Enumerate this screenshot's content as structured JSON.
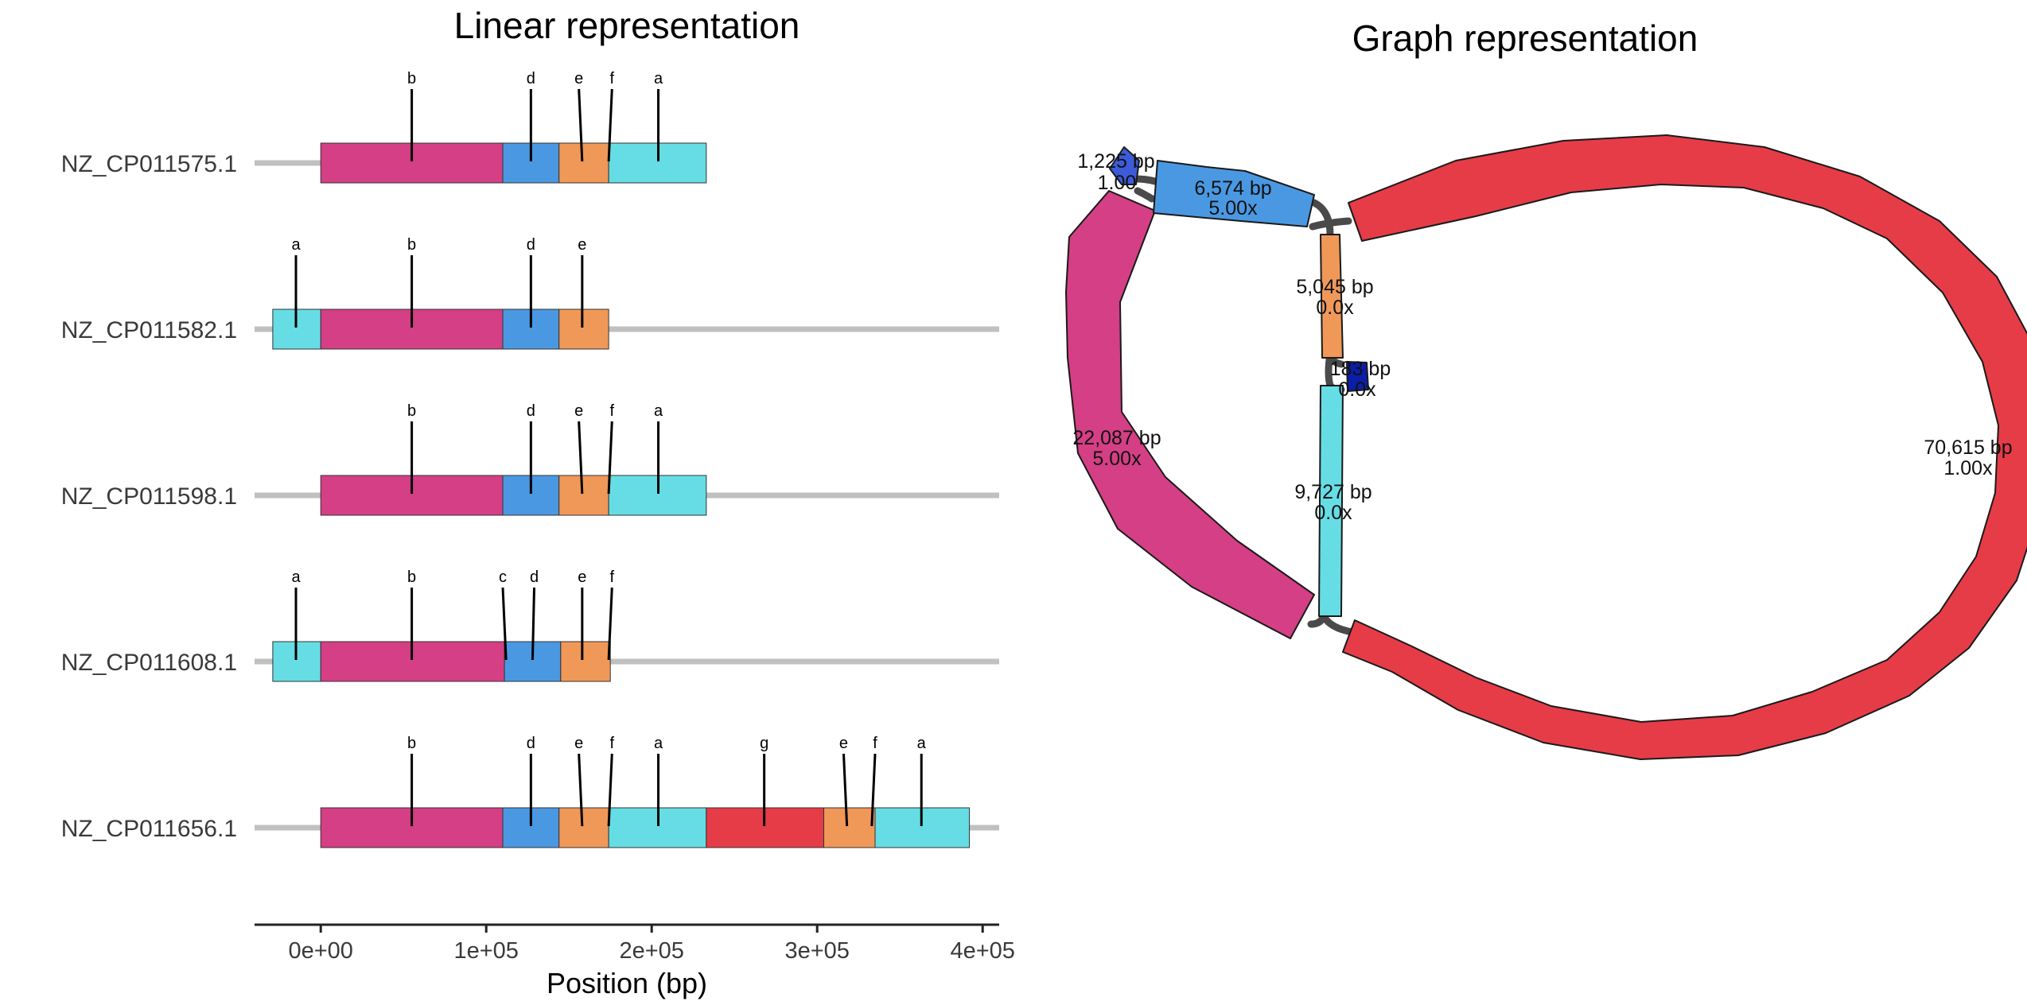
{
  "chart_data": [
    {
      "type": "linear-genome-map",
      "title": "Linear representation",
      "xlabel": "Position (bp)",
      "ylabel": "",
      "xlim": [
        -40000,
        410000
      ],
      "x_ticks": [
        0,
        100000,
        200000,
        300000,
        400000
      ],
      "x_tick_labels": [
        "0e+00",
        "1e+05",
        "2e+05",
        "3e+05",
        "4e+05"
      ],
      "segment_colors": {
        "magenta": "#d43f85",
        "blue": "#4a98e2",
        "orange": "#f09858",
        "cyan": "#66dde4",
        "red": "#e63c48"
      },
      "rows": [
        {
          "name": "NZ_CP011575.1",
          "line": [
            -40000,
            210000
          ],
          "segments": [
            {
              "start": 0,
              "end": 110000,
              "color": "magenta"
            },
            {
              "start": 110000,
              "end": 144000,
              "color": "blue"
            },
            {
              "start": 144000,
              "end": 174000,
              "color": "orange"
            },
            {
              "start": 174000,
              "end": 233000,
              "color": "cyan"
            }
          ],
          "genes": [
            {
              "label": "b",
              "pos": 55000
            },
            {
              "label": "d",
              "pos": 127000
            },
            {
              "label": "e",
              "pos": 158000,
              "top_pos": 156000
            },
            {
              "label": "f",
              "pos": 174000,
              "top_pos": 176000
            },
            {
              "label": "a",
              "pos": 204000
            }
          ]
        },
        {
          "name": "NZ_CP011582.1",
          "line": [
            -40000,
            410000
          ],
          "segments": [
            {
              "start": -29000,
              "end": 0,
              "color": "cyan"
            },
            {
              "start": 0,
              "end": 110000,
              "color": "magenta"
            },
            {
              "start": 110000,
              "end": 144000,
              "color": "blue"
            },
            {
              "start": 144000,
              "end": 174000,
              "color": "orange"
            }
          ],
          "genes": [
            {
              "label": "a",
              "pos": -15000
            },
            {
              "label": "b",
              "pos": 55000
            },
            {
              "label": "d",
              "pos": 127000
            },
            {
              "label": "e",
              "pos": 158000
            }
          ]
        },
        {
          "name": "NZ_CP011598.1",
          "line": [
            -40000,
            410000
          ],
          "segments": [
            {
              "start": 0,
              "end": 110000,
              "color": "magenta"
            },
            {
              "start": 110000,
              "end": 144000,
              "color": "blue"
            },
            {
              "start": 144000,
              "end": 174000,
              "color": "orange"
            },
            {
              "start": 174000,
              "end": 233000,
              "color": "cyan"
            }
          ],
          "genes": [
            {
              "label": "b",
              "pos": 55000
            },
            {
              "label": "d",
              "pos": 127000
            },
            {
              "label": "e",
              "pos": 158000,
              "top_pos": 156000
            },
            {
              "label": "f",
              "pos": 174000,
              "top_pos": 176000
            },
            {
              "label": "a",
              "pos": 204000
            }
          ]
        },
        {
          "name": "NZ_CP011608.1",
          "line": [
            -40000,
            410000
          ],
          "segments": [
            {
              "start": -29000,
              "end": 0,
              "color": "cyan"
            },
            {
              "start": 0,
              "end": 111000,
              "color": "magenta"
            },
            {
              "start": 111000,
              "end": 145000,
              "color": "blue"
            },
            {
              "start": 145000,
              "end": 175000,
              "color": "orange"
            }
          ],
          "genes": [
            {
              "label": "a",
              "pos": -15000
            },
            {
              "label": "b",
              "pos": 55000
            },
            {
              "label": "c",
              "pos": 112000,
              "top_pos": 110000
            },
            {
              "label": "d",
              "pos": 128000,
              "top_pos": 129000
            },
            {
              "label": "e",
              "pos": 158000
            },
            {
              "label": "f",
              "pos": 174000,
              "top_pos": 176000
            }
          ]
        },
        {
          "name": "NZ_CP011656.1",
          "line": [
            -40000,
            410000
          ],
          "segments": [
            {
              "start": 0,
              "end": 110000,
              "color": "magenta"
            },
            {
              "start": 110000,
              "end": 144000,
              "color": "blue"
            },
            {
              "start": 144000,
              "end": 174000,
              "color": "orange"
            },
            {
              "start": 174000,
              "end": 233000,
              "color": "cyan"
            },
            {
              "start": 233000,
              "end": 304000,
              "color": "red"
            },
            {
              "start": 304000,
              "end": 335000,
              "color": "orange"
            },
            {
              "start": 335000,
              "end": 392000,
              "color": "cyan"
            }
          ],
          "genes": [
            {
              "label": "b",
              "pos": 55000
            },
            {
              "label": "d",
              "pos": 127000
            },
            {
              "label": "e",
              "pos": 158000,
              "top_pos": 156000
            },
            {
              "label": "f",
              "pos": 174000,
              "top_pos": 176000
            },
            {
              "label": "a",
              "pos": 204000
            },
            {
              "label": "g",
              "pos": 268000
            },
            {
              "label": "e",
              "pos": 318000,
              "top_pos": 316000
            },
            {
              "label": "f",
              "pos": 333000,
              "top_pos": 335000
            },
            {
              "label": "a",
              "pos": 363000
            }
          ]
        }
      ]
    },
    {
      "type": "assembly-graph",
      "title": "Graph representation",
      "nodes": [
        {
          "id": "red",
          "length": "70,615 bp",
          "depth": "1.00x",
          "color": "#e63c48"
        },
        {
          "id": "magenta",
          "length": "22,087 bp",
          "depth": "5.00x",
          "color": "#d43f85"
        },
        {
          "id": "cyan",
          "length": "9,727 bp",
          "depth": "0.0x",
          "color": "#66dde4"
        },
        {
          "id": "blue",
          "length": "6,574 bp",
          "depth": "5.00x",
          "color": "#4a98e2"
        },
        {
          "id": "orange",
          "length": "5,045 bp",
          "depth": "0.0x",
          "color": "#f09858"
        },
        {
          "id": "small-indigo",
          "length": "1,225 bp",
          "depth": "1.00",
          "color": "#3d5bd9"
        },
        {
          "id": "small-navy",
          "length": "183 bp",
          "depth": "0.0x",
          "color": "#0b1ea8"
        }
      ]
    }
  ]
}
